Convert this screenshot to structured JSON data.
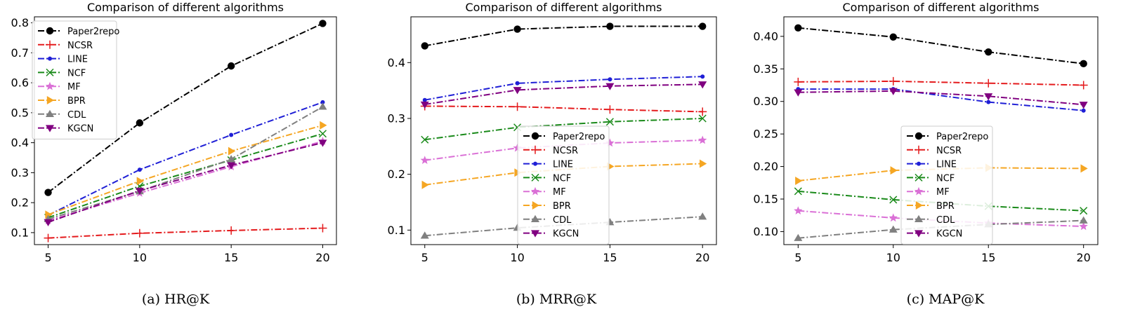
{
  "styles": {
    "Paper2repo": {
      "color": "#000000",
      "marker": "circle"
    },
    "NCSR": {
      "color": "#e41a1c",
      "marker": "plus"
    },
    "LINE": {
      "color": "#1f1fd6",
      "marker": "dot"
    },
    "NCF": {
      "color": "#1a8a1a",
      "marker": "x"
    },
    "MF": {
      "color": "#da70d6",
      "marker": "star"
    },
    "BPR": {
      "color": "#f5a623",
      "marker": "triangle-right"
    },
    "CDL": {
      "color": "#808080",
      "marker": "triangle-up"
    },
    "KGCN": {
      "color": "#800080",
      "marker": "triangle-down"
    }
  },
  "captions": [
    "(a)  HR@K",
    "(b)  MRR@K",
    "(c)  MAP@K"
  ],
  "chart_data": [
    {
      "type": "line",
      "title": "Comparison of different algorithms",
      "x": [
        5,
        10,
        15,
        20
      ],
      "xticks": [
        "5",
        "10",
        "15",
        "20"
      ],
      "xlim": [
        4.25,
        20.75
      ],
      "ylim": [
        0.06,
        0.82
      ],
      "yticks": [
        0.1,
        0.2,
        0.3,
        0.4,
        0.5,
        0.6,
        0.7,
        0.8
      ],
      "ytick_labels": [
        "0.1",
        "0.2",
        "0.3",
        "0.4",
        "0.5",
        "0.6",
        "0.7",
        "0.8"
      ],
      "legend_loc": "upper-left",
      "series": [
        {
          "name": "Paper2repo",
          "values": [
            0.234,
            0.466,
            0.656,
            0.798
          ]
        },
        {
          "name": "NCSR",
          "values": [
            0.082,
            0.098,
            0.107,
            0.115
          ]
        },
        {
          "name": "LINE",
          "values": [
            0.158,
            0.31,
            0.426,
            0.535
          ]
        },
        {
          "name": "NCF",
          "values": [
            0.15,
            0.255,
            0.342,
            0.43
          ]
        },
        {
          "name": "MF",
          "values": [
            0.14,
            0.232,
            0.32,
            0.405
          ]
        },
        {
          "name": "BPR",
          "values": [
            0.16,
            0.272,
            0.372,
            0.458
          ]
        },
        {
          "name": "CDL",
          "values": [
            0.145,
            0.238,
            0.345,
            0.52
          ]
        },
        {
          "name": "KGCN",
          "values": [
            0.135,
            0.24,
            0.325,
            0.4
          ]
        }
      ]
    },
    {
      "type": "line",
      "title": "Comparison of different algorithms",
      "x": [
        5,
        10,
        15,
        20
      ],
      "xticks": [
        "5",
        "10",
        "15",
        "20"
      ],
      "xlim": [
        4.25,
        20.75
      ],
      "ylim": [
        0.074,
        0.482
      ],
      "yticks": [
        0.1,
        0.2,
        0.3,
        0.4
      ],
      "ytick_labels": [
        "0.1",
        "0.2",
        "0.3",
        "0.4"
      ],
      "legend_loc": "center-lower",
      "series": [
        {
          "name": "Paper2repo",
          "values": [
            0.43,
            0.46,
            0.465,
            0.465
          ]
        },
        {
          "name": "NCSR",
          "values": [
            0.322,
            0.321,
            0.316,
            0.312
          ]
        },
        {
          "name": "LINE",
          "values": [
            0.333,
            0.363,
            0.37,
            0.375
          ]
        },
        {
          "name": "NCF",
          "values": [
            0.262,
            0.284,
            0.294,
            0.3
          ]
        },
        {
          "name": "MF",
          "values": [
            0.225,
            0.247,
            0.256,
            0.261
          ]
        },
        {
          "name": "BPR",
          "values": [
            0.181,
            0.203,
            0.214,
            0.219
          ]
        },
        {
          "name": "CDL",
          "values": [
            0.09,
            0.104,
            0.114,
            0.124
          ]
        },
        {
          "name": "KGCN",
          "values": [
            0.325,
            0.351,
            0.358,
            0.361
          ]
        }
      ]
    },
    {
      "type": "line",
      "title": "Comparison of different algorithms",
      "x": [
        5,
        10,
        15,
        20
      ],
      "xticks": [
        "5",
        "10",
        "15",
        "20"
      ],
      "xlim": [
        4.25,
        20.75
      ],
      "ylim": [
        0.08,
        0.43
      ],
      "yticks": [
        0.1,
        0.15,
        0.2,
        0.25,
        0.3,
        0.35,
        0.4
      ],
      "ytick_labels": [
        "0.10",
        "0.15",
        "0.20",
        "0.25",
        "0.30",
        "0.35",
        "0.40"
      ],
      "legend_loc": "center-lower",
      "series": [
        {
          "name": "Paper2repo",
          "values": [
            0.413,
            0.399,
            0.376,
            0.358
          ]
        },
        {
          "name": "NCSR",
          "values": [
            0.33,
            0.331,
            0.328,
            0.325
          ]
        },
        {
          "name": "LINE",
          "values": [
            0.319,
            0.319,
            0.299,
            0.286
          ]
        },
        {
          "name": "NCF",
          "values": [
            0.162,
            0.149,
            0.139,
            0.132
          ]
        },
        {
          "name": "MF",
          "values": [
            0.132,
            0.121,
            0.113,
            0.108
          ]
        },
        {
          "name": "BPR",
          "values": [
            0.178,
            0.194,
            0.198,
            0.197
          ]
        },
        {
          "name": "CDL",
          "values": [
            0.09,
            0.103,
            0.111,
            0.117
          ]
        },
        {
          "name": "KGCN",
          "values": [
            0.314,
            0.316,
            0.308,
            0.295
          ]
        }
      ]
    }
  ]
}
